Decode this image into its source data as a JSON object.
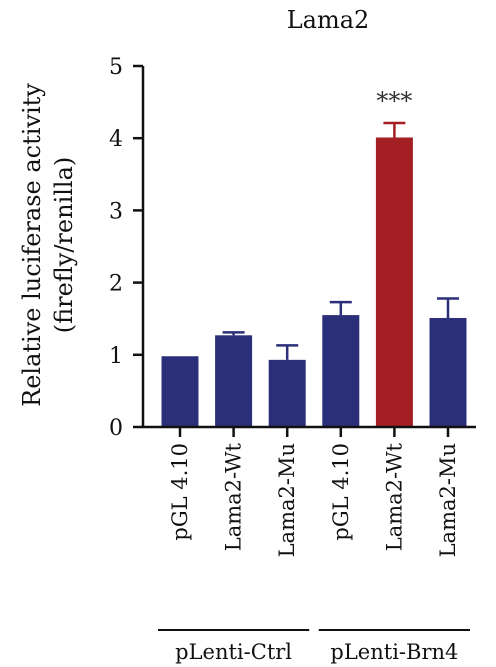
{
  "chart_data": {
    "type": "bar",
    "title": "Lama2",
    "ylabel_lines": [
      "Relative luciferase activity",
      "(firefly/renilla)"
    ],
    "xlabel": "",
    "ylim": [
      0,
      5
    ],
    "yticks": [
      0,
      1,
      2,
      3,
      4,
      5
    ],
    "categories": [
      "pGL 4.10",
      "Lama2-Wt",
      "Lama2-Mu",
      "pGL 4.10",
      "Lama2-Wt",
      "Lama2-Mu"
    ],
    "values": [
      0.98,
      1.27,
      0.93,
      1.55,
      4.01,
      1.51
    ],
    "errors": [
      0.0,
      0.04,
      0.2,
      0.18,
      0.2,
      0.27
    ],
    "colors": [
      "#2b2f7a",
      "#2b2f7a",
      "#2b2f7a",
      "#2b2f7a",
      "#a31f24",
      "#2b2f7a"
    ],
    "groups": [
      {
        "label": "pLenti-Ctrl",
        "start": 0,
        "end": 2
      },
      {
        "label": "pLenti-Brn4",
        "start": 3,
        "end": 5
      }
    ],
    "annotations": [
      {
        "category_index": 4,
        "text": "***"
      }
    ],
    "grid": false,
    "legend": "none"
  }
}
